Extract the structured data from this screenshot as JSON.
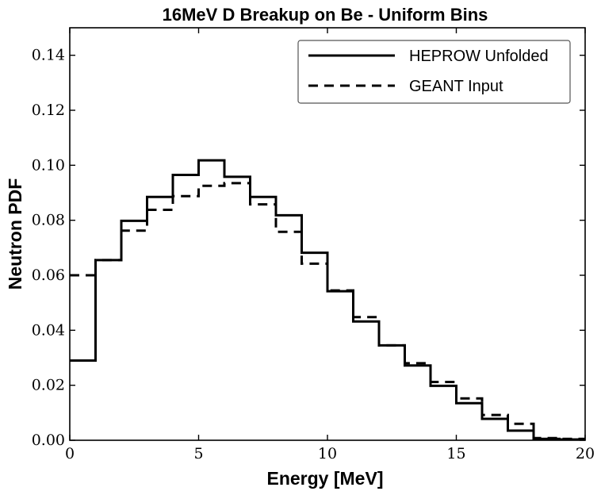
{
  "chart_data": {
    "type": "line",
    "step": true,
    "title": "16MeV D Breakup on Be - Uniform Bins",
    "xlabel": "Energy [MeV]",
    "ylabel": "Neutron PDF",
    "xlim": [
      0,
      20
    ],
    "ylim": [
      0,
      0.15
    ],
    "xticks": [
      "0",
      "5",
      "10",
      "15",
      "20"
    ],
    "yticks": [
      "0.00",
      "0.02",
      "0.04",
      "0.06",
      "0.08",
      "0.10",
      "0.12",
      "0.14"
    ],
    "grid": false,
    "legend_position": "top-right",
    "bin_edges": [
      0,
      1,
      2,
      3,
      4,
      5,
      6,
      7,
      8,
      9,
      10,
      11,
      12,
      13,
      14,
      15,
      16,
      17,
      18,
      19,
      20
    ],
    "series": [
      {
        "name": "HEPROW Unfolded",
        "style": "solid",
        "color": "#000000",
        "values": [
          0.029,
          0.0655,
          0.0798,
          0.0885,
          0.0965,
          0.1018,
          0.0958,
          0.0885,
          0.0818,
          0.0682,
          0.0542,
          0.0432,
          0.0345,
          0.0272,
          0.0198,
          0.0135,
          0.0078,
          0.0035,
          0.0005,
          0.0003
        ]
      },
      {
        "name": "GEANT Input",
        "style": "dashed",
        "color": "#000000",
        "values": [
          0.06,
          0.0655,
          0.0762,
          0.0838,
          0.0888,
          0.0925,
          0.0935,
          0.0858,
          0.0758,
          0.0642,
          0.0545,
          0.0448,
          0.0345,
          0.028,
          0.0212,
          0.0152,
          0.0092,
          0.006,
          0.0008,
          0.0005
        ]
      }
    ]
  }
}
